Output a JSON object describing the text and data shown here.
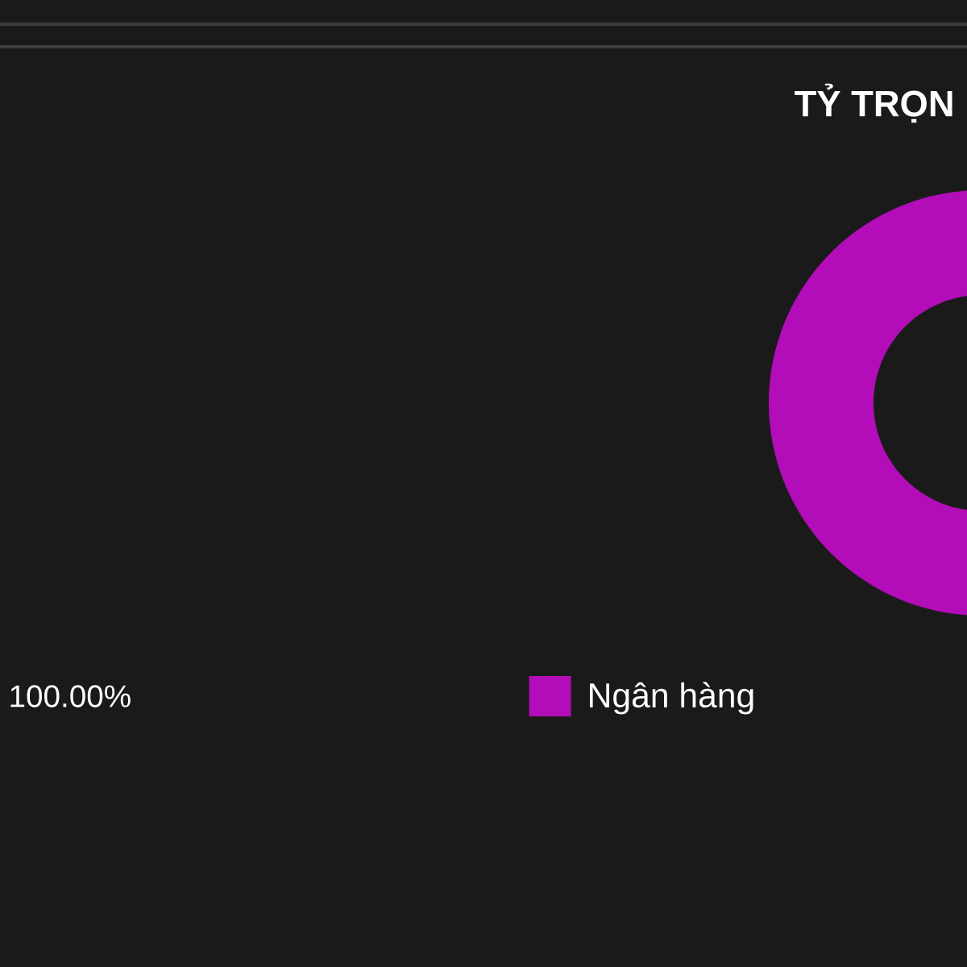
{
  "chart_data": {
    "type": "donut",
    "title": "TỶ TRỌN",
    "categories": [
      "Ngân hàng"
    ],
    "values": [
      100
    ],
    "colors": [
      "#b20db8"
    ],
    "value_labels": [
      "100.00%"
    ],
    "legend": "bottom"
  }
}
